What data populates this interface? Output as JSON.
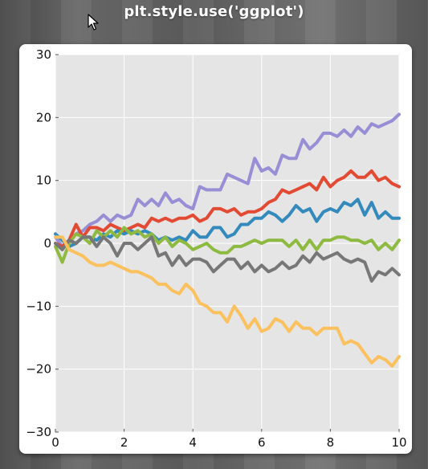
{
  "slide": {
    "title": "plt.style.use('ggplot')"
  },
  "cursor": {
    "icon": "arrow-cursor-icon"
  },
  "chart_data": {
    "type": "line",
    "style": "ggplot",
    "title": "",
    "xlabel": "",
    "ylabel": "",
    "xlim": [
      0,
      10
    ],
    "ylim": [
      -30,
      30
    ],
    "xticks": [
      "0",
      "2",
      "4",
      "6",
      "8",
      "10"
    ],
    "yticks": [
      "30",
      "20",
      "10",
      "0",
      "−10",
      "−20",
      "−30"
    ],
    "grid": true,
    "legend": "none",
    "colors": {
      "panel": "#e5e5e5",
      "grid": "#ffffff",
      "tick_text": "#111111"
    },
    "series": [
      {
        "color": "#988ed5",
        "x": [
          0,
          0.2,
          0.4,
          0.6,
          0.8,
          1,
          1.2,
          1.4,
          1.6,
          1.8,
          2,
          2.2,
          2.4,
          2.6,
          2.8,
          3,
          3.2,
          3.4,
          3.6,
          3.8,
          4,
          4.2,
          4.4,
          4.6,
          4.8,
          5,
          5.2,
          5.4,
          5.6,
          5.8,
          6,
          6.2,
          6.4,
          6.6,
          6.8,
          7,
          7.2,
          7.4,
          7.6,
          7.8,
          8,
          8.2,
          8.4,
          8.6,
          8.8,
          9,
          9.2,
          9.4,
          9.6,
          9.8,
          10
        ],
        "y": [
          1,
          -0.5,
          0.5,
          1.5,
          2,
          3,
          3.5,
          4.5,
          3.5,
          4.5,
          4,
          4.5,
          7,
          6,
          7,
          6,
          8,
          6.5,
          7,
          6,
          5.5,
          9,
          8.5,
          8.5,
          8.5,
          11,
          10.5,
          10,
          9.5,
          13.5,
          11.5,
          12,
          11,
          14,
          13.5,
          13.5,
          16.5,
          15,
          16,
          17.5,
          17.5,
          17,
          18,
          17,
          18.5,
          17.5,
          19,
          18.5,
          19,
          19.5,
          20.5
        ]
      },
      {
        "color": "#e24a33",
        "x": [
          0,
          0.2,
          0.4,
          0.6,
          0.8,
          1,
          1.2,
          1.4,
          1.6,
          1.8,
          2,
          2.2,
          2.4,
          2.6,
          2.8,
          3,
          3.2,
          3.4,
          3.6,
          3.8,
          4,
          4.2,
          4.4,
          4.6,
          4.8,
          5,
          5.2,
          5.4,
          5.6,
          5.8,
          6,
          6.2,
          6.4,
          6.6,
          6.8,
          7,
          7.2,
          7.4,
          7.6,
          7.8,
          8,
          8.2,
          8.4,
          8.6,
          8.8,
          9,
          9.2,
          9.4,
          9.6,
          9.8,
          10
        ],
        "y": [
          0,
          -0.5,
          0.5,
          3,
          1,
          2.5,
          2.5,
          2,
          3,
          2.5,
          2,
          2.5,
          3,
          2.5,
          4,
          3.5,
          4,
          3.5,
          4,
          4,
          4.5,
          3.5,
          4,
          5.5,
          5.5,
          5,
          5.5,
          4.5,
          5,
          5,
          5.5,
          6.5,
          7,
          8.5,
          8,
          8.5,
          9,
          9.5,
          8.5,
          10.5,
          9,
          10,
          10.5,
          11.5,
          10.5,
          10.5,
          11.5,
          10,
          10.5,
          9.5,
          9
        ]
      },
      {
        "color": "#348abd",
        "x": [
          0,
          0.2,
          0.4,
          0.6,
          0.8,
          1,
          1.2,
          1.4,
          1.6,
          1.8,
          2,
          2.2,
          2.4,
          2.6,
          2.8,
          3,
          3.2,
          3.4,
          3.6,
          3.8,
          4,
          4.2,
          4.4,
          4.6,
          4.8,
          5,
          5.2,
          5.4,
          5.6,
          5.8,
          6,
          6.2,
          6.4,
          6.6,
          6.8,
          7,
          7.2,
          7.4,
          7.6,
          7.8,
          8,
          8.2,
          8.4,
          8.6,
          8.8,
          9,
          9.2,
          9.4,
          9.6,
          9.8,
          10
        ],
        "y": [
          1.5,
          0.5,
          -0.5,
          0,
          1,
          1,
          0.5,
          1.5,
          1,
          2,
          1.5,
          2,
          1.5,
          2,
          1.5,
          0.5,
          1,
          0.5,
          1,
          0.5,
          2,
          1,
          1,
          2.5,
          2.5,
          1,
          1.5,
          3,
          3,
          4,
          4,
          5,
          4.5,
          3.5,
          4.5,
          6,
          5,
          5.5,
          3.5,
          5,
          5.5,
          5,
          6.5,
          6,
          7,
          4.5,
          6.5,
          4,
          5,
          4,
          4
        ]
      },
      {
        "color": "#8eba42",
        "x": [
          0,
          0.2,
          0.4,
          0.6,
          0.8,
          1,
          1.2,
          1.4,
          1.6,
          1.8,
          2,
          2.2,
          2.4,
          2.6,
          2.8,
          3,
          3.2,
          3.4,
          3.6,
          3.8,
          4,
          4.2,
          4.4,
          4.6,
          4.8,
          5,
          5.2,
          5.4,
          5.6,
          5.8,
          6,
          6.2,
          6.4,
          6.6,
          6.8,
          7,
          7.2,
          7.4,
          7.6,
          7.8,
          8,
          8.2,
          8.4,
          8.6,
          8.8,
          9,
          9.2,
          9.4,
          9.6,
          9.8,
          10
        ],
        "y": [
          -0.5,
          -3,
          0,
          1.5,
          1,
          0,
          2,
          1,
          2,
          1,
          2.5,
          1.5,
          2,
          1,
          1.5,
          0,
          1,
          -0.5,
          0.5,
          0,
          -1,
          -0.5,
          0,
          -1,
          -1.5,
          -1.5,
          -0.5,
          -0.5,
          0,
          0.5,
          0,
          0.5,
          0.5,
          0.5,
          -0.5,
          0.5,
          -1,
          0.5,
          -1,
          0.5,
          0.5,
          1,
          1,
          0.5,
          0.5,
          0,
          0.5,
          -1,
          0,
          -1,
          0.5
        ]
      },
      {
        "color": "#777777",
        "x": [
          0,
          0.2,
          0.4,
          0.6,
          0.8,
          1,
          1.2,
          1.4,
          1.6,
          1.8,
          2,
          2.2,
          2.4,
          2.6,
          2.8,
          3,
          3.2,
          3.4,
          3.6,
          3.8,
          4,
          4.2,
          4.4,
          4.6,
          4.8,
          5,
          5.2,
          5.4,
          5.6,
          5.8,
          6,
          6.2,
          6.4,
          6.6,
          6.8,
          7,
          7.2,
          7.4,
          7.6,
          7.8,
          8,
          8.2,
          8.4,
          8.6,
          8.8,
          9,
          9.2,
          9.4,
          9.6,
          9.8,
          10
        ],
        "y": [
          0,
          -1,
          0.5,
          0,
          1,
          1,
          -0.5,
          1,
          0,
          -2,
          0,
          0,
          -1,
          0,
          1,
          -2,
          -1.5,
          -3.5,
          -2,
          -3.5,
          -2.5,
          -2.5,
          -3,
          -4.5,
          -3.5,
          -2.5,
          -2.5,
          -4,
          -3,
          -4.5,
          -3.5,
          -4.5,
          -4,
          -3,
          -4,
          -3.5,
          -2,
          -3,
          -1.5,
          -2.5,
          -2,
          -1.5,
          -2.5,
          -3,
          -2.5,
          -3,
          -6,
          -4.5,
          -5,
          -4,
          -5
        ]
      },
      {
        "color": "#fbc15e",
        "x": [
          0,
          0.2,
          0.4,
          0.6,
          0.8,
          1,
          1.2,
          1.4,
          1.6,
          1.8,
          2,
          2.2,
          2.4,
          2.6,
          2.8,
          3,
          3.2,
          3.4,
          3.6,
          3.8,
          4,
          4.2,
          4.4,
          4.6,
          4.8,
          5,
          5.2,
          5.4,
          5.6,
          5.8,
          6,
          6.2,
          6.4,
          6.6,
          6.8,
          7,
          7.2,
          7.4,
          7.6,
          7.8,
          8,
          8.2,
          8.4,
          8.6,
          8.8,
          9,
          9.2,
          9.4,
          9.6,
          9.8,
          10
        ],
        "y": [
          1,
          1,
          -1,
          -1.5,
          -2,
          -3,
          -3.5,
          -3.5,
          -3,
          -3.5,
          -4,
          -4.5,
          -4.5,
          -5,
          -5.5,
          -6.5,
          -6.5,
          -7.5,
          -8,
          -6.5,
          -7.5,
          -9.5,
          -10,
          -11,
          -11,
          -12.5,
          -10,
          -11.5,
          -13.5,
          -12,
          -14,
          -13.5,
          -12,
          -12.5,
          -14,
          -12.5,
          -13.5,
          -13.5,
          -14.5,
          -13.5,
          -13.5,
          -13.5,
          -16,
          -15.5,
          -16,
          -17.5,
          -19,
          -18,
          -18.5,
          -19.5,
          -18
        ]
      }
    ]
  }
}
